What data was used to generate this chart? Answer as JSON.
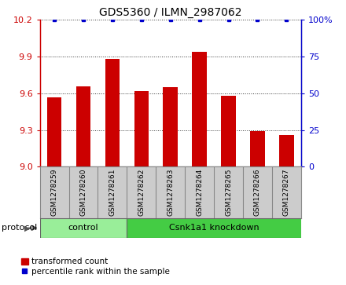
{
  "title": "GDS5360 / ILMN_2987062",
  "samples": [
    "GSM1278259",
    "GSM1278260",
    "GSM1278261",
    "GSM1278262",
    "GSM1278263",
    "GSM1278264",
    "GSM1278265",
    "GSM1278266",
    "GSM1278267"
  ],
  "transformed_counts": [
    9.57,
    9.66,
    9.88,
    9.62,
    9.65,
    9.94,
    9.58,
    9.29,
    9.26
  ],
  "percentile_ranks": [
    100,
    100,
    100,
    100,
    100,
    100,
    100,
    100,
    100
  ],
  "ylim_left": [
    9.0,
    10.2
  ],
  "ylim_right": [
    0,
    100
  ],
  "yticks_left": [
    9.0,
    9.3,
    9.6,
    9.9,
    10.2
  ],
  "yticks_right": [
    0,
    25,
    50,
    75,
    100
  ],
  "bar_color": "#cc0000",
  "dot_color": "#0000cc",
  "protocol_groups": [
    {
      "label": "control",
      "start": 0,
      "end": 3,
      "color": "#99ee99"
    },
    {
      "label": "Csnk1a1 knockdown",
      "start": 3,
      "end": 9,
      "color": "#44cc44"
    }
  ],
  "protocol_label": "protocol",
  "legend_bar_label": "transformed count",
  "legend_dot_label": "percentile rank within the sample",
  "title_fontsize": 10,
  "tick_fontsize": 8,
  "sample_label_fontsize": 6.5,
  "protocol_fontsize": 8,
  "legend_fontsize": 7.5,
  "background_color": "#ffffff",
  "plot_bg_color": "#ffffff",
  "grid_color": "#333333",
  "left_tick_color": "#cc0000",
  "right_tick_color": "#0000cc",
  "box_color": "#cccccc",
  "box_edge_color": "#888888"
}
